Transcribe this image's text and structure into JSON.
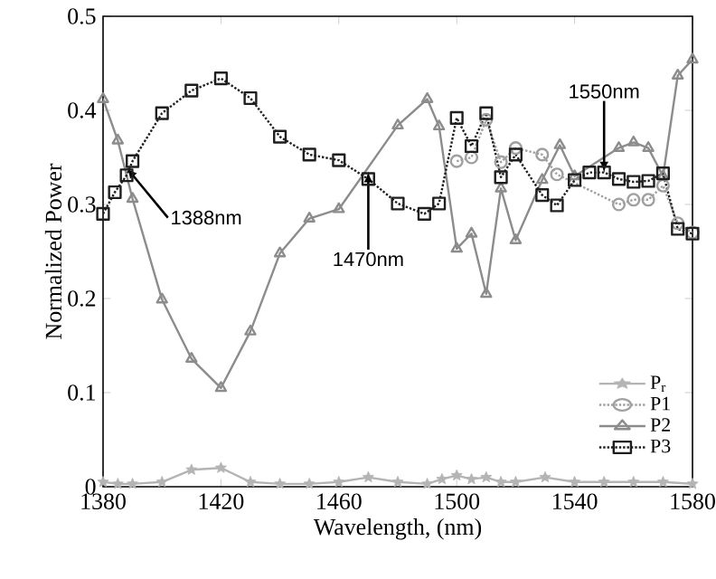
{
  "chart_data": {
    "type": "line",
    "xlabel": "Wavelength, (nm)",
    "ylabel": "Normalized Power",
    "xlim": [
      1380,
      1580
    ],
    "ylim": [
      0,
      0.5
    ],
    "xticks": [
      1380,
      1420,
      1460,
      1500,
      1540,
      1580
    ],
    "yticks": [
      0,
      0.1,
      0.2,
      0.3,
      0.4,
      0.5
    ],
    "legend": "bottom right",
    "series": [
      {
        "name": "P$_{r}$",
        "color": "#b4b4b4",
        "marker": "star",
        "line_style": "solid",
        "x": [
          1380,
          1385,
          1390,
          1400,
          1410,
          1420,
          1430,
          1440,
          1450,
          1460,
          1470,
          1480,
          1490,
          1495,
          1500,
          1505,
          1510,
          1515,
          1520,
          1530,
          1540,
          1550,
          1560,
          1570,
          1580
        ],
        "values": [
          0.005,
          0.003,
          0.003,
          0.005,
          0.018,
          0.02,
          0.005,
          0.003,
          0.003,
          0.005,
          0.01,
          0.005,
          0.003,
          0.008,
          0.012,
          0.008,
          0.01,
          0.005,
          0.005,
          0.01,
          0.005,
          0.005,
          0.005,
          0.005,
          0.003
        ]
      },
      {
        "name": "P1",
        "color": "#a0a0a0",
        "marker": "circle",
        "line_style": "dotted",
        "x": [
          1500,
          1505,
          1510,
          1515,
          1520,
          1529,
          1534,
          1540,
          1555,
          1560,
          1565,
          1570,
          1575,
          1580
        ],
        "values": [
          0.346,
          0.35,
          0.39,
          0.345,
          0.36,
          0.353,
          0.332,
          null,
          0.3,
          0.305,
          0.305,
          0.32,
          0.28,
          0.27
        ]
      },
      {
        "name": "P2",
        "color": "#8c8c8c",
        "marker": "triangle",
        "line_style": "solid",
        "x": [
          1380,
          1385,
          1390,
          1400,
          1410,
          1420,
          1430,
          1440,
          1450,
          1460,
          1480,
          1490,
          1494,
          1500,
          1505,
          1510,
          1515,
          1520,
          1529,
          1535,
          1540,
          1555,
          1560,
          1565,
          1570,
          1575,
          1580
        ],
        "values": [
          0.412,
          0.368,
          0.306,
          0.199,
          0.136,
          0.105,
          0.165,
          0.248,
          0.285,
          0.295,
          0.384,
          0.412,
          0.383,
          0.253,
          0.269,
          0.205,
          0.317,
          0.262,
          0.326,
          0.363,
          0.33,
          0.36,
          0.366,
          0.36,
          0.33,
          0.437,
          0.454
        ]
      },
      {
        "name": "P3",
        "color": "#1e1e1e",
        "marker": "square",
        "line_style": "dotted",
        "x": [
          1380,
          1384,
          1388,
          1390,
          1400,
          1410,
          1420,
          1430,
          1440,
          1450,
          1460,
          1470,
          1480,
          1489,
          1494,
          1500,
          1505,
          1510,
          1515,
          1520,
          1529,
          1534,
          1540,
          1545,
          1550,
          1555,
          1560,
          1565,
          1570,
          1575,
          1580
        ],
        "values": [
          0.29,
          0.313,
          0.331,
          0.346,
          0.397,
          0.421,
          0.434,
          0.413,
          0.372,
          0.353,
          0.347,
          0.327,
          0.301,
          0.29,
          0.301,
          0.392,
          0.362,
          0.397,
          0.329,
          0.353,
          0.31,
          0.299,
          0.326,
          0.334,
          0.334,
          0.327,
          0.324,
          0.325,
          0.333,
          0.274,
          0.269
        ]
      }
    ],
    "annotations": [
      {
        "text": "1388nm",
        "x": 1388,
        "y": 0.331
      },
      {
        "text": "1470nm",
        "x": 1470,
        "y": 0.327
      },
      {
        "text": "1550nm",
        "x": 1550,
        "y": 0.34
      }
    ]
  }
}
